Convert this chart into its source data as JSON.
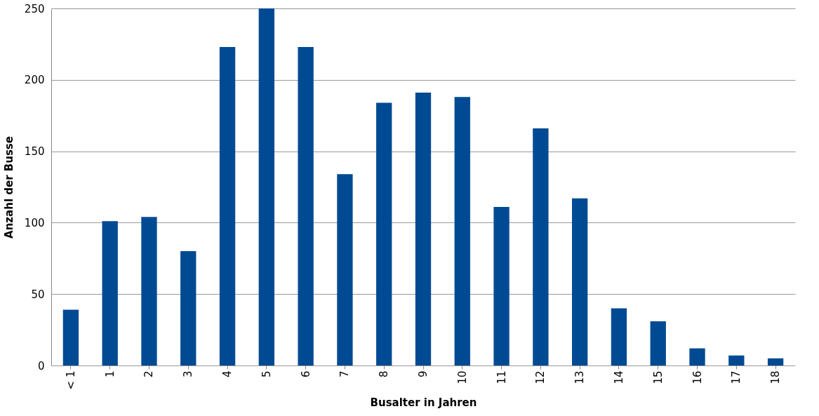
{
  "chart_data": {
    "type": "bar",
    "xlabel": "Busalter in Jahren",
    "ylabel": "Anzahl der Busse",
    "categories": [
      "< 1",
      "1",
      "2",
      "3",
      "4",
      "5",
      "6",
      "7",
      "8",
      "9",
      "10",
      "11",
      "12",
      "13",
      "14",
      "15",
      "16",
      "17",
      "18"
    ],
    "values": [
      39,
      101,
      104,
      80,
      223,
      250,
      223,
      134,
      184,
      191,
      188,
      111,
      166,
      117,
      40,
      31,
      12,
      7,
      5
    ],
    "color": "#004a93",
    "ylim": [
      0,
      250
    ],
    "yticks": [
      0,
      50,
      100,
      150,
      200,
      250
    ],
    "grid": "y"
  }
}
